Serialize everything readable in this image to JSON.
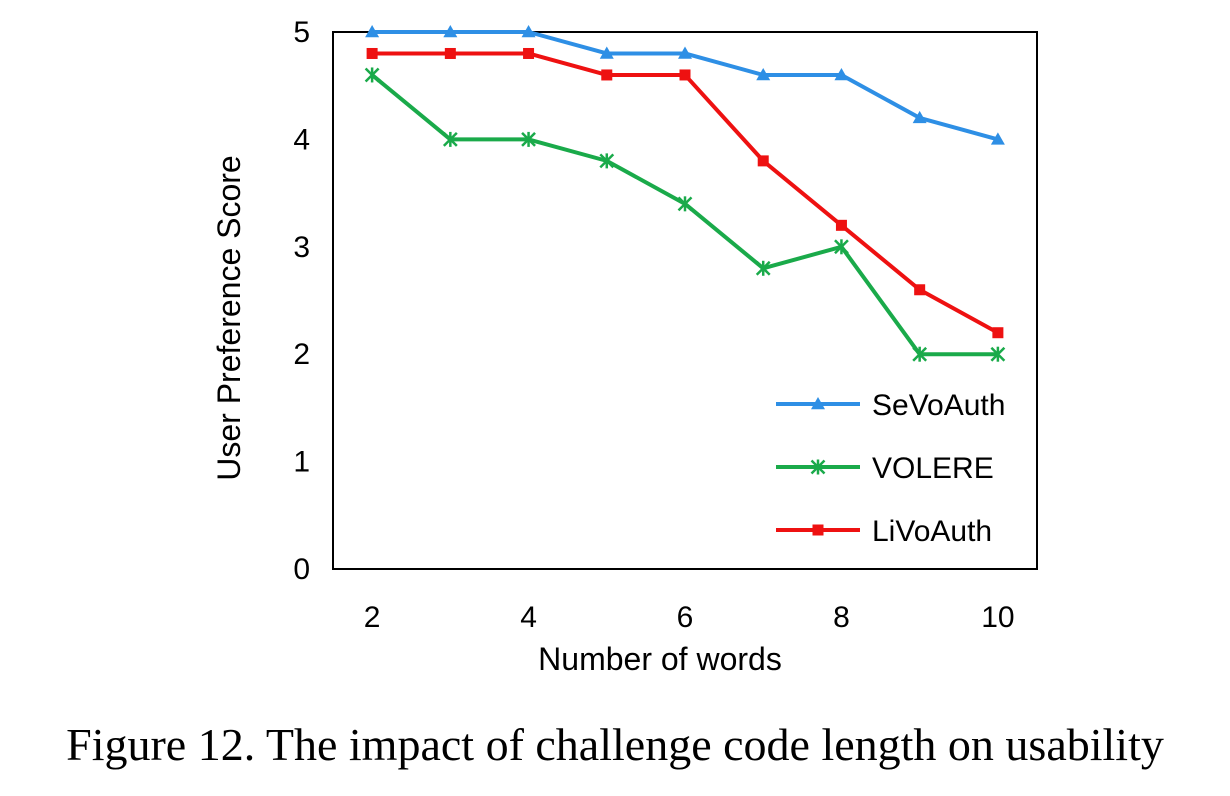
{
  "chart_data": {
    "type": "line",
    "x": [
      2,
      3,
      4,
      5,
      6,
      7,
      8,
      9,
      10
    ],
    "xlabel": "Number of words",
    "ylabel": "User Preference Score",
    "xlim": [
      1.5,
      10.5
    ],
    "ylim": [
      0,
      5
    ],
    "xticks": [
      2,
      4,
      6,
      8,
      10
    ],
    "yticks": [
      0,
      1,
      2,
      3,
      4,
      5
    ],
    "grid": false,
    "legend_position": "bottom-right",
    "series": [
      {
        "name": "SeVoAuth",
        "color": "#2E8FE5",
        "marker": "triangle",
        "values": [
          5,
          5,
          5,
          4.8,
          4.8,
          4.6,
          4.6,
          4.2,
          4.0
        ]
      },
      {
        "name": "VOLERE",
        "color": "#1AAA4A",
        "marker": "asterisk",
        "values": [
          4.6,
          4.0,
          4.0,
          3.8,
          3.4,
          2.8,
          3.0,
          2.0,
          2.0
        ]
      },
      {
        "name": "LiVoAuth",
        "color": "#EE1111",
        "marker": "square",
        "values": [
          4.8,
          4.8,
          4.8,
          4.6,
          4.6,
          3.8,
          3.2,
          2.6,
          2.2
        ]
      }
    ]
  },
  "caption": "Figure 12. The impact of challenge code length on usability"
}
